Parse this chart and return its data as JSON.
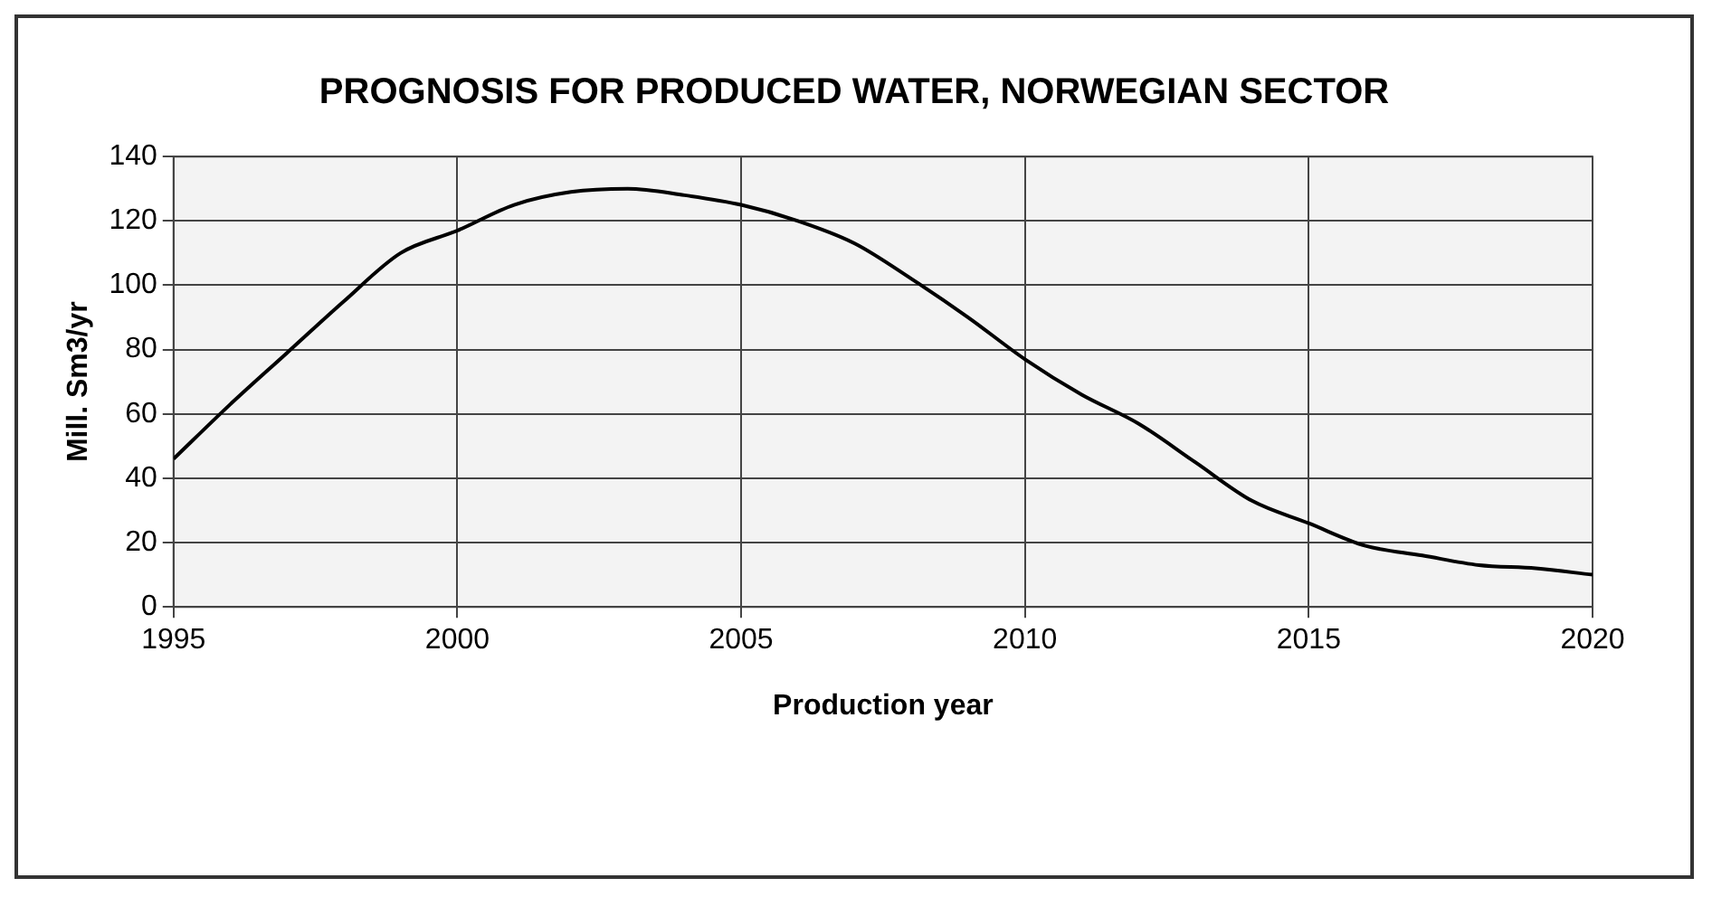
{
  "chart_data": {
    "type": "line",
    "title": "PROGNOSIS FOR PRODUCED WATER, NORWEGIAN SECTOR",
    "xlabel": "Production year",
    "ylabel": "Mill. Sm3/yr",
    "x": [
      1995,
      1996,
      1997,
      1998,
      1999,
      2000,
      2001,
      2002,
      2003,
      2004,
      2005,
      2006,
      2007,
      2008,
      2009,
      2010,
      2011,
      2012,
      2013,
      2014,
      2015,
      2016,
      2017,
      2018,
      2019,
      2020
    ],
    "series": [
      {
        "color": "#000000",
        "values": [
          46,
          63,
          79,
          95,
          110,
          117,
          125,
          129,
          130,
          128,
          125,
          120,
          113,
          102,
          90,
          77,
          66,
          57,
          45,
          33,
          26,
          19,
          16,
          13,
          12,
          10
        ]
      }
    ],
    "xlim": [
      1995,
      2020
    ],
    "xticks": [
      1995,
      2000,
      2005,
      2010,
      2015,
      2020
    ],
    "ylim": [
      0,
      140
    ],
    "yticks": [
      0,
      20,
      40,
      60,
      80,
      100,
      120,
      140
    ],
    "grid": true,
    "legend": false,
    "marker": "none",
    "line_style": "solid"
  }
}
